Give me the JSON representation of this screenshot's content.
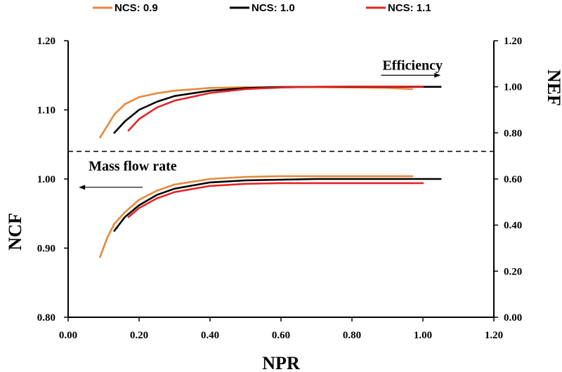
{
  "chart_data": {
    "type": "line",
    "title": "",
    "xlabel": "NPR",
    "ylabel_left": "NCF",
    "ylabel_right": "NEF",
    "xlim": [
      0.0,
      1.2
    ],
    "ylim_left": [
      0.8,
      1.2
    ],
    "ylim_right": [
      0.0,
      1.2
    ],
    "x_ticks": [
      "0.00",
      "0.20",
      "0.40",
      "0.60",
      "0.80",
      "1.00",
      "1.20"
    ],
    "y_left_ticks": [
      "0.80",
      "0.90",
      "1.00",
      "1.10",
      "1.20"
    ],
    "y_right_ticks": [
      "0.00",
      "0.20",
      "0.40",
      "0.60",
      "0.80",
      "1.00",
      "1.20"
    ],
    "x_tick_values": [
      0,
      0.2,
      0.4,
      0.6,
      0.8,
      1.0,
      1.2
    ],
    "y_left_tick_values": [
      0.8,
      0.9,
      1.0,
      1.1,
      1.2
    ],
    "y_right_tick_values": [
      0,
      0.2,
      0.4,
      0.6,
      0.8,
      1.0,
      1.2
    ],
    "divider_y_left": 1.04,
    "colors": {
      "NCS: 0.9": "#e8883a",
      "NCS: 1.0": "#000000",
      "NCS: 1.1": "#e52323"
    },
    "annotations": [
      {
        "text": "Efficiency",
        "axis": "right",
        "direction": "right",
        "x": 0.89,
        "y": 1.05,
        "arrow_to": 1.05
      },
      {
        "text": "Mass flow rate",
        "axis": "left",
        "direction": "left",
        "x": 0.21,
        "y": 0.988,
        "arrow_to": 0.03
      }
    ],
    "series": [
      {
        "name": "NCS: 0.9",
        "group": "efficiency",
        "axis": "right",
        "x": [
          0.09,
          0.11,
          0.13,
          0.16,
          0.2,
          0.25,
          0.3,
          0.4,
          0.5,
          0.6,
          0.7,
          0.8,
          0.9,
          0.97
        ],
        "y": [
          0.78,
          0.83,
          0.88,
          0.925,
          0.955,
          0.972,
          0.983,
          0.995,
          0.998,
          0.999,
          0.998,
          0.997,
          0.995,
          0.99
        ]
      },
      {
        "name": "NCS: 1.0",
        "group": "efficiency",
        "axis": "right",
        "x": [
          0.13,
          0.16,
          0.2,
          0.25,
          0.3,
          0.4,
          0.5,
          0.6,
          0.7,
          0.8,
          0.9,
          1.0,
          1.05
        ],
        "y": [
          0.8,
          0.85,
          0.9,
          0.935,
          0.96,
          0.983,
          0.994,
          0.999,
          1.0,
          1.0,
          1.0,
          1.0,
          1.0
        ]
      },
      {
        "name": "NCS: 1.1",
        "group": "efficiency",
        "axis": "right",
        "x": [
          0.17,
          0.2,
          0.25,
          0.3,
          0.4,
          0.5,
          0.6,
          0.7,
          0.8,
          0.9,
          1.0
        ],
        "y": [
          0.81,
          0.86,
          0.91,
          0.94,
          0.973,
          0.99,
          0.997,
          1.0,
          1.001,
          1.001,
          1.001
        ]
      },
      {
        "name": "NCS: 0.9",
        "group": "mass flow rate",
        "axis": "left",
        "x": [
          0.09,
          0.11,
          0.13,
          0.16,
          0.2,
          0.25,
          0.3,
          0.4,
          0.5,
          0.6,
          0.7,
          0.8,
          0.9,
          0.97
        ],
        "y": [
          0.887,
          0.915,
          0.935,
          0.952,
          0.97,
          0.983,
          0.992,
          1.0,
          1.003,
          1.004,
          1.004,
          1.004,
          1.004,
          1.004
        ]
      },
      {
        "name": "NCS: 1.0",
        "group": "mass flow rate",
        "axis": "left",
        "x": [
          0.13,
          0.16,
          0.2,
          0.25,
          0.3,
          0.4,
          0.5,
          0.6,
          0.7,
          0.8,
          0.9,
          1.0,
          1.05
        ],
        "y": [
          0.925,
          0.945,
          0.962,
          0.977,
          0.986,
          0.995,
          0.998,
          0.999,
          1.0,
          1.0,
          1.0,
          1.0,
          1.0
        ]
      },
      {
        "name": "NCS: 1.1",
        "group": "mass flow rate",
        "axis": "left",
        "x": [
          0.17,
          0.2,
          0.25,
          0.3,
          0.4,
          0.5,
          0.6,
          0.7,
          0.8,
          0.9,
          1.0
        ],
        "y": [
          0.945,
          0.958,
          0.972,
          0.981,
          0.99,
          0.993,
          0.994,
          0.994,
          0.994,
          0.994,
          0.994
        ]
      }
    ],
    "legend": [
      "NCS: 0.9",
      "NCS: 1.0",
      "NCS: 1.1"
    ]
  }
}
